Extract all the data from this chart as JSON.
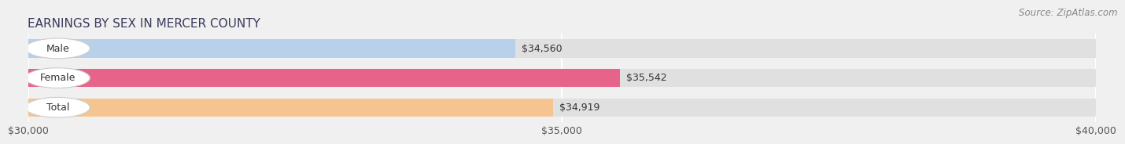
{
  "title": "EARNINGS BY SEX IN MERCER COUNTY",
  "source": "Source: ZipAtlas.com",
  "categories": [
    "Male",
    "Female",
    "Total"
  ],
  "values": [
    34560,
    35542,
    34919
  ],
  "bar_colors": [
    "#b8d0ea",
    "#e8638a",
    "#f5c491"
  ],
  "bar_labels": [
    "$34,560",
    "$35,542",
    "$34,919"
  ],
  "xlim_min": 30000,
  "xlim_max": 40000,
  "xticks": [
    30000,
    35000,
    40000
  ],
  "xtick_labels": [
    "$30,000",
    "$35,000",
    "$40,000"
  ],
  "background_color": "#f0f0f0",
  "bar_bg_color": "#e0e0e0",
  "title_fontsize": 11,
  "label_fontsize": 9,
  "source_fontsize": 8.5,
  "value_label_fontsize": 9
}
